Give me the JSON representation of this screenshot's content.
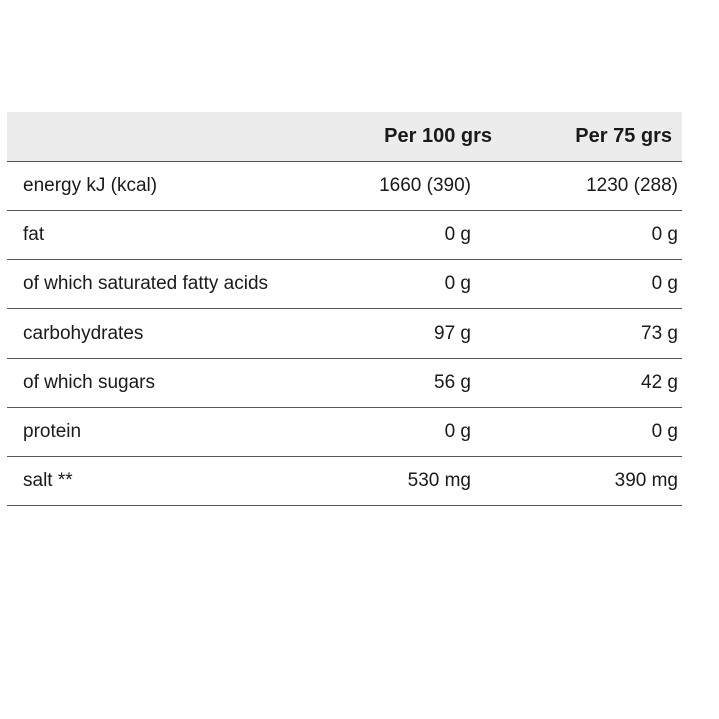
{
  "table": {
    "header": [
      "Per 100 grs",
      "Per 75 grs"
    ],
    "rows": [
      [
        "energy kJ (kcal)",
        "1660 (390)",
        "1230 (288)"
      ],
      [
        "fat",
        "0 g",
        "0 g"
      ],
      [
        "of which saturated fatty acids",
        "0 g",
        "0 g"
      ],
      [
        "carbohydrates",
        "97 g",
        "73 g"
      ],
      [
        "of which sugars",
        "56 g",
        "42 g"
      ],
      [
        "protein",
        "0 g",
        "0 g"
      ],
      [
        "salt **",
        "530 mg",
        "390 mg"
      ]
    ]
  }
}
